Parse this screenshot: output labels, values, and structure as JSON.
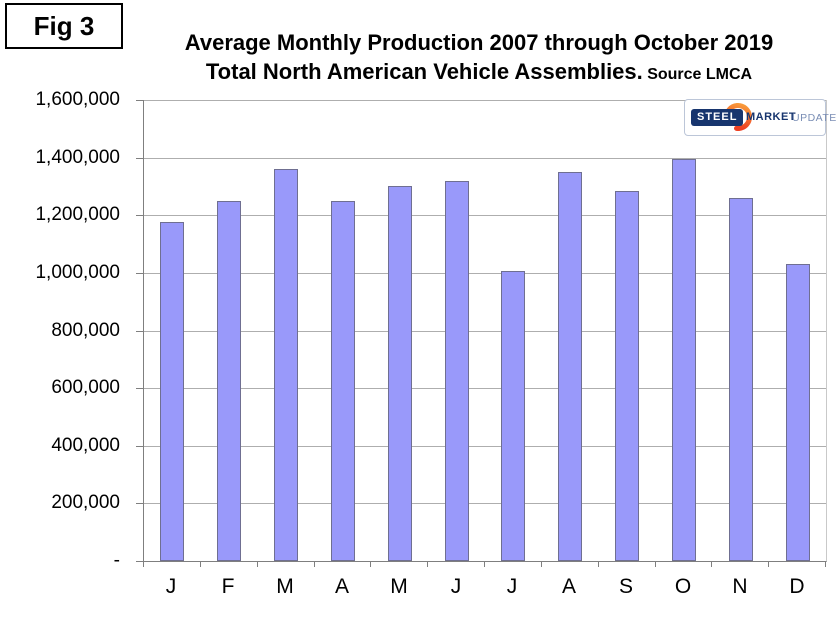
{
  "figure_label": "Fig 3",
  "title": {
    "line1": "Average Monthly Production 2007 through October 2019",
    "line2": "Total North American Vehicle Assemblies.",
    "source": " Source LMCA"
  },
  "logo": {
    "steel": "STEEL",
    "market": "MARKET",
    "update": "UPDATE"
  },
  "chart_data": {
    "type": "bar",
    "title": "Average Monthly Production 2007 through October 2019 Total North American Vehicle Assemblies. Source LMCA",
    "categories": [
      "J",
      "F",
      "M",
      "A",
      "M",
      "J",
      "J",
      "A",
      "S",
      "O",
      "N",
      "D"
    ],
    "values": [
      1175000,
      1250000,
      1360000,
      1250000,
      1300000,
      1320000,
      1005000,
      1350000,
      1285000,
      1395000,
      1260000,
      1030000
    ],
    "xlabel": "",
    "ylabel": "",
    "ylim": [
      0,
      1600000
    ],
    "ytick_interval": 200000,
    "ytick_labels": [
      "-",
      "200,000",
      "400,000",
      "600,000",
      "800,000",
      "1,000,000",
      "1,200,000",
      "1,400,000",
      "1,600,000"
    ],
    "grid": true,
    "legend": false,
    "bar_color": "#9999fa",
    "bar_border_color": "#6f6f91",
    "gridline_color": "#aeaeae",
    "axis_color": "#7f7f7f"
  }
}
